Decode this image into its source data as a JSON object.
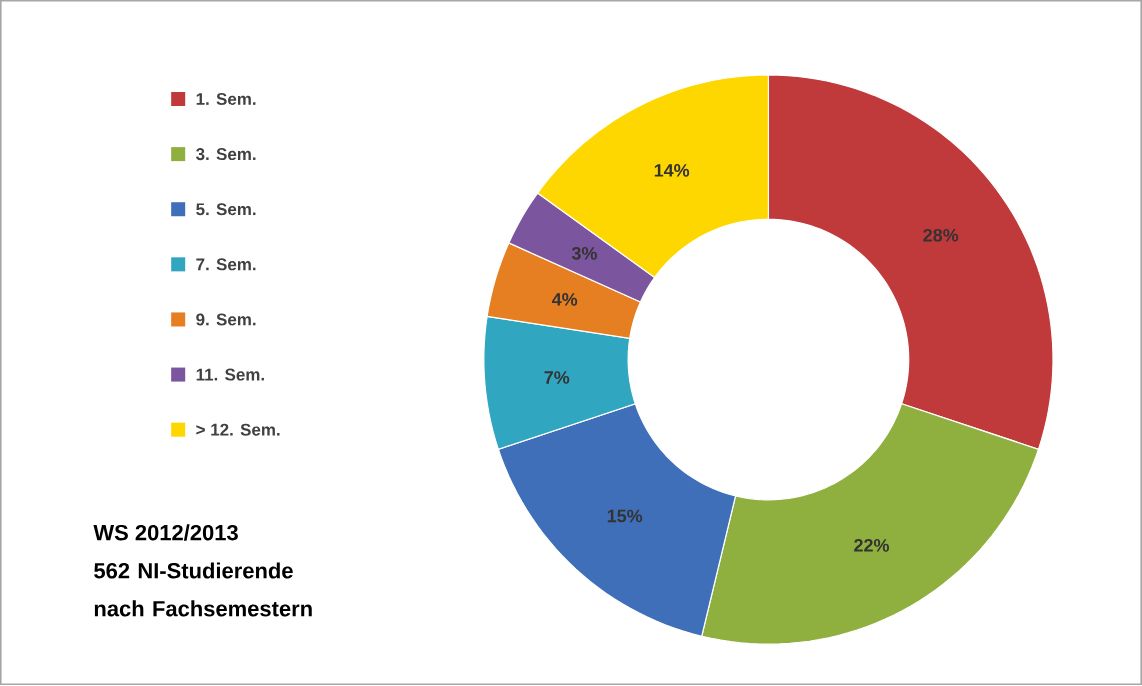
{
  "chart_data": {
    "type": "donut",
    "title": "WS 2012/2013",
    "subtitle": "562 NI-Studierende nach Fachsemestern",
    "categories": [
      "1. Sem.",
      "3. Sem.",
      "5. Sem.",
      "7. Sem.",
      "9. Sem.",
      "11. Sem.",
      "> 12. Sem."
    ],
    "values": [
      28,
      22,
      15,
      7,
      4,
      3,
      14
    ],
    "value_labels": [
      "28%",
      "22%",
      "15%",
      "7%",
      "4%",
      "3%",
      "14%"
    ],
    "colors": [
      "#c0393b",
      "#8fb03f",
      "#3f6fb8",
      "#31a6c0",
      "#e67e22",
      "#7b559e",
      "#ffd700"
    ],
    "legend": "left"
  }
}
